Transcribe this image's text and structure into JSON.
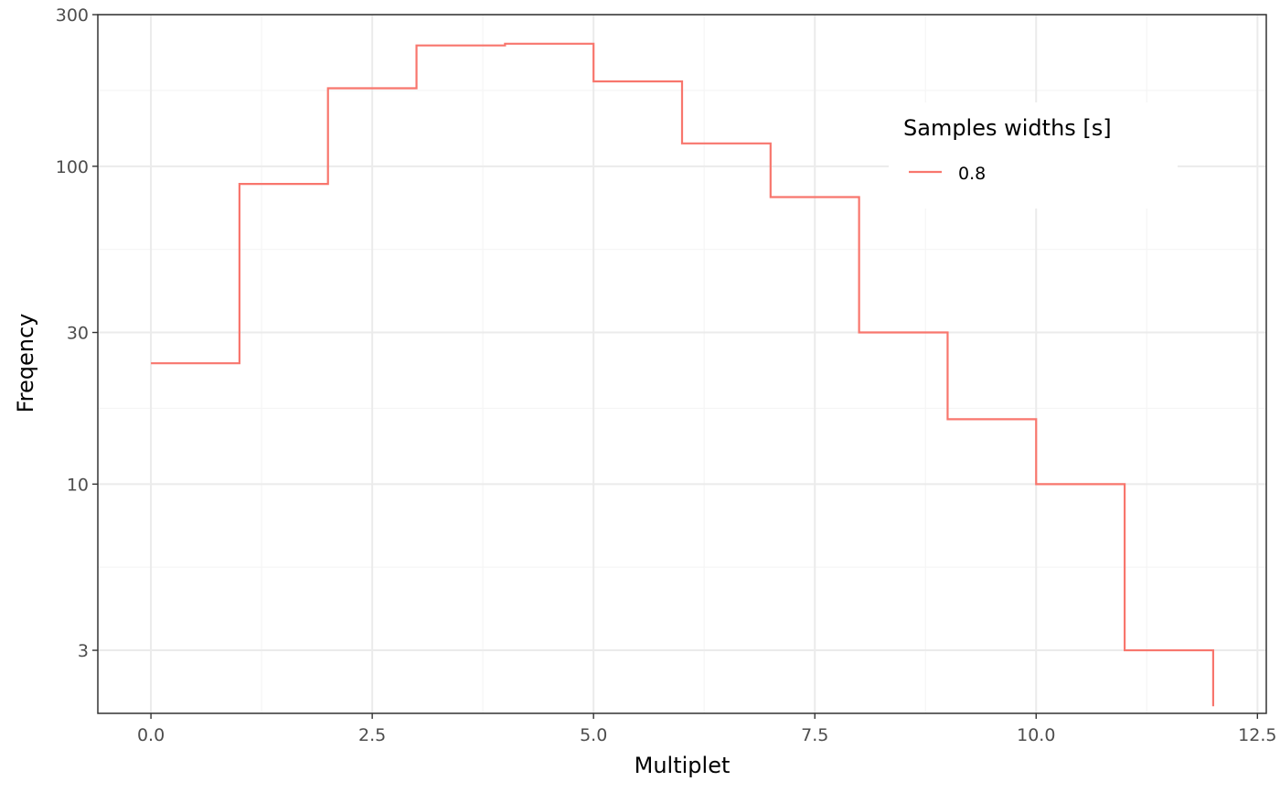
{
  "chart_data": {
    "type": "line",
    "step": true,
    "title": "",
    "xlabel": "Multiplet",
    "ylabel": "Freqency",
    "y_scale": "log10",
    "xlim": [
      -0.6,
      12.6
    ],
    "ylim": [
      1.9,
      300
    ],
    "x_ticks": [
      0.0,
      2.5,
      5.0,
      7.5,
      10.0,
      12.5
    ],
    "x_tick_labels": [
      "0.0",
      "2.5",
      "5.0",
      "7.5",
      "10.0",
      "12.5"
    ],
    "y_ticks": [
      3,
      10,
      30,
      100,
      300
    ],
    "y_tick_labels": [
      "3",
      "10",
      "30",
      "100",
      "300"
    ],
    "grid": true,
    "legend": {
      "title": "Samples widths [s]",
      "position": "top-right, inside",
      "entries": [
        "0.8"
      ]
    },
    "series": [
      {
        "name": "0.8",
        "color": "#F8766D",
        "x": [
          0,
          1,
          2,
          3,
          4,
          5,
          6,
          7,
          8,
          9,
          10,
          11,
          12
        ],
        "y": [
          24,
          88,
          176,
          240,
          243,
          185,
          118,
          80,
          30,
          16,
          10,
          3,
          2
        ]
      }
    ]
  },
  "colors": {
    "panel_border": "#333333",
    "grid_major": "#ebebeb",
    "grid_minor": "#f5f5f5",
    "tick": "#333333",
    "series": "#F8766D"
  }
}
